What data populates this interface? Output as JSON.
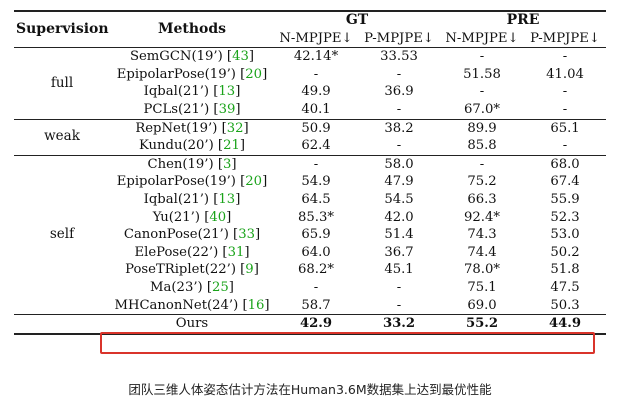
{
  "table": {
    "header": {
      "supervision": "Supervision",
      "methods": "Methods",
      "group_gt": "GT",
      "group_pre": "PRE",
      "cols": [
        "N-MPJPE↓",
        "P-MPJPE↓",
        "N-MPJPE↓",
        "P-MPJPE↓"
      ]
    },
    "groups": {
      "full": "full",
      "weak": "weak",
      "self": "self"
    },
    "rows": [
      {
        "name": "SemGCN(19’) [",
        "cite": "43",
        "close": "]",
        "v": [
          "42.14*",
          "33.53",
          "-",
          "-"
        ]
      },
      {
        "name": "EpipolarPose(19’) [",
        "cite": "20",
        "close": "]",
        "v": [
          "-",
          "-",
          "51.58",
          "41.04"
        ]
      },
      {
        "name": "Iqbal(21’) [",
        "cite": "13",
        "close": "]",
        "v": [
          "49.9",
          "36.9",
          "-",
          "-"
        ]
      },
      {
        "name": "PCLs(21’) [",
        "cite": "39",
        "close": "]",
        "v": [
          "40.1",
          "-",
          "67.0*",
          "-"
        ]
      },
      {
        "name": "RepNet(19’) [",
        "cite": "32",
        "close": "]",
        "v": [
          "50.9",
          "38.2",
          "89.9",
          "65.1"
        ]
      },
      {
        "name": "Kundu(20’) [",
        "cite": "21",
        "close": "]",
        "v": [
          "62.4",
          "-",
          "85.8",
          "-"
        ]
      },
      {
        "name": "Chen(19’) [",
        "cite": "3",
        "close": "]",
        "v": [
          "-",
          "58.0",
          "-",
          "68.0"
        ]
      },
      {
        "name": "EpipolarPose(19’) [",
        "cite": "20",
        "close": "]",
        "v": [
          "54.9",
          "47.9",
          "75.2",
          "67.4"
        ]
      },
      {
        "name": "Iqbal(21’) [",
        "cite": "13",
        "close": "]",
        "v": [
          "64.5",
          "54.5",
          "66.3",
          "55.9"
        ]
      },
      {
        "name": "Yu(21’) [",
        "cite": "40",
        "close": "]",
        "v": [
          "85.3*",
          "42.0",
          "92.4*",
          "52.3"
        ]
      },
      {
        "name": "CanonPose(21’) [",
        "cite": "33",
        "close": "]",
        "v": [
          "65.9",
          "51.4",
          "74.3",
          "53.0"
        ]
      },
      {
        "name": "ElePose(22’) [",
        "cite": "31",
        "close": "]",
        "v": [
          "64.0",
          "36.7",
          "74.4",
          "50.2"
        ]
      },
      {
        "name": "PoseTRiplet(22’) [",
        "cite": "9",
        "close": "]",
        "v": [
          "68.2*",
          "45.1",
          "78.0*",
          "51.8"
        ]
      },
      {
        "name": "Ma(23’) [",
        "cite": "25",
        "close": "]",
        "v": [
          "-",
          "-",
          "75.1",
          "47.5"
        ]
      },
      {
        "name": "MHCanonNet(24’) [",
        "cite": "16",
        "close": "]",
        "v": [
          "58.7",
          "-",
          "69.0",
          "50.3"
        ]
      },
      {
        "name": "Ours",
        "cite": "",
        "close": "",
        "v": [
          "42.9",
          "33.2",
          "55.2",
          "44.9"
        ]
      }
    ]
  },
  "caption": "团队三维人体姿态估计方法在Human3.6M数据集上达到最优性能",
  "colors": {
    "cite": "#1aa31a",
    "highlight": "#d9342b"
  }
}
